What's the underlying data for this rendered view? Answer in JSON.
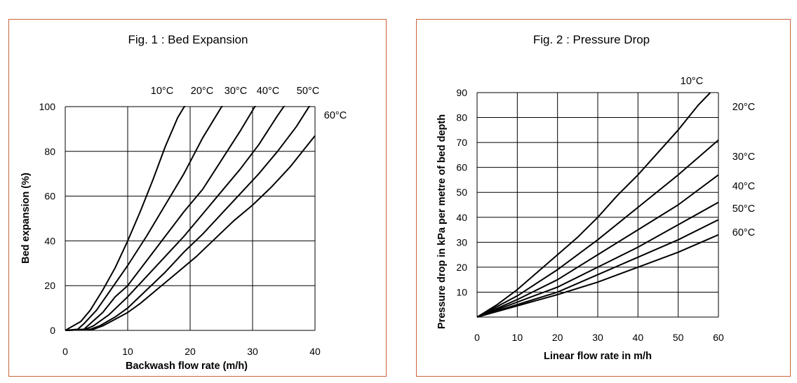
{
  "chart_data": [
    {
      "type": "line",
      "title": "Fig. 1 : Bed Expansion",
      "xlabel": "Backwash flow rate (m/h)",
      "ylabel": "Bed expansion (%)",
      "xlim": [
        0,
        40
      ],
      "ylim": [
        0,
        100
      ],
      "xticks": [
        "0",
        "10",
        "20",
        "30",
        "40"
      ],
      "yticks": [
        "0",
        "20",
        "40",
        "60",
        "80",
        "100"
      ],
      "grid": true,
      "series": [
        {
          "name": "10°C",
          "points": [
            [
              0,
              0
            ],
            [
              2.5,
              4
            ],
            [
              4,
              9
            ],
            [
              6,
              18
            ],
            [
              8,
              28
            ],
            [
              10,
              40
            ],
            [
              12,
              53
            ],
            [
              14,
              67
            ],
            [
              16,
              82
            ],
            [
              18,
              95
            ],
            [
              19.5,
              102
            ]
          ]
        },
        {
          "name": "20°C",
          "points": [
            [
              0,
              0
            ],
            [
              2,
              0.5
            ],
            [
              3,
              3
            ],
            [
              5,
              9
            ],
            [
              7,
              17
            ],
            [
              10,
              29
            ],
            [
              13,
              42
            ],
            [
              16,
              56
            ],
            [
              19,
              70
            ],
            [
              22,
              86
            ],
            [
              25.5,
              102
            ]
          ]
        },
        {
          "name": "30°C",
          "points": [
            [
              0,
              0
            ],
            [
              3,
              0.5
            ],
            [
              4,
              3
            ],
            [
              6,
              8
            ],
            [
              8,
              15
            ],
            [
              10,
              20
            ],
            [
              13,
              31
            ],
            [
              16,
              42
            ],
            [
              19,
              53
            ],
            [
              22,
              63
            ],
            [
              25,
              76
            ],
            [
              28,
              89
            ],
            [
              30.8,
              102
            ]
          ]
        },
        {
          "name": "40°C",
          "points": [
            [
              0,
              0
            ],
            [
              3,
              0.3
            ],
            [
              4.5,
              2
            ],
            [
              7,
              7
            ],
            [
              10,
              15
            ],
            [
              13,
              24
            ],
            [
              16,
              33
            ],
            [
              19,
              42
            ],
            [
              22,
              52
            ],
            [
              25,
              62
            ],
            [
              28,
              72
            ],
            [
              31,
              83
            ],
            [
              34,
              96
            ],
            [
              35.5,
              102
            ]
          ]
        },
        {
          "name": "50°C",
          "points": [
            [
              0,
              0
            ],
            [
              4,
              0.5
            ],
            [
              5.5,
              2
            ],
            [
              8,
              6
            ],
            [
              10,
              10
            ],
            [
              13,
              18
            ],
            [
              16,
              26
            ],
            [
              19,
              35
            ],
            [
              22,
              43
            ],
            [
              25,
              52
            ],
            [
              28,
              61
            ],
            [
              31,
              70
            ],
            [
              34,
              80
            ],
            [
              37,
              91
            ],
            [
              39.5,
              102
            ]
          ]
        },
        {
          "name": "60°C",
          "points": [
            [
              0,
              0
            ],
            [
              4.5,
              0.5
            ],
            [
              6,
              2
            ],
            [
              8,
              5
            ],
            [
              10,
              8
            ],
            [
              12,
              12
            ],
            [
              15,
              19
            ],
            [
              18,
              26
            ],
            [
              21,
              33
            ],
            [
              24,
              41
            ],
            [
              27,
              49
            ],
            [
              30,
              56
            ],
            [
              33,
              64
            ],
            [
              36,
              73
            ],
            [
              38,
              80
            ],
            [
              40,
              87
            ]
          ]
        }
      ]
    },
    {
      "type": "line",
      "title": "Fig. 2 : Pressure Drop",
      "xlabel": "Linear flow rate in m/h",
      "ylabel": "Pressure drop in kPa per metre of bed depth",
      "xlim": [
        0,
        60
      ],
      "ylim": [
        0,
        90
      ],
      "xticks": [
        "0",
        "10",
        "20",
        "30",
        "40",
        "50",
        "60"
      ],
      "yticks": [
        "10",
        "20",
        "30",
        "40",
        "50",
        "60",
        "70",
        "80",
        "90"
      ],
      "grid": true,
      "series": [
        {
          "name": "10°C",
          "points": [
            [
              0,
              0
            ],
            [
              5,
              5
            ],
            [
              10,
              11
            ],
            [
              15,
              18
            ],
            [
              20,
              25
            ],
            [
              25,
              32
            ],
            [
              30,
              40
            ],
            [
              35,
              49
            ],
            [
              40,
              57
            ],
            [
              45,
              66
            ],
            [
              50,
              75
            ],
            [
              55,
              85
            ],
            [
              58,
              90
            ]
          ]
        },
        {
          "name": "20°C",
          "points": [
            [
              0,
              0
            ],
            [
              10,
              8.5
            ],
            [
              20,
              19
            ],
            [
              30,
              31
            ],
            [
              40,
              44
            ],
            [
              50,
              57
            ],
            [
              60,
              71
            ]
          ]
        },
        {
          "name": "30°C",
          "points": [
            [
              0,
              0
            ],
            [
              10,
              7
            ],
            [
              20,
              15
            ],
            [
              30,
              25
            ],
            [
              40,
              35
            ],
            [
              50,
              45
            ],
            [
              60,
              57
            ]
          ]
        },
        {
          "name": "40°C",
          "points": [
            [
              0,
              0
            ],
            [
              10,
              6
            ],
            [
              20,
              12
            ],
            [
              30,
              20
            ],
            [
              40,
              28
            ],
            [
              50,
              37
            ],
            [
              60,
              46
            ]
          ]
        },
        {
          "name": "50°C",
          "points": [
            [
              0,
              0
            ],
            [
              10,
              5
            ],
            [
              20,
              10
            ],
            [
              30,
              17
            ],
            [
              40,
              24
            ],
            [
              50,
              31
            ],
            [
              60,
              39
            ]
          ]
        },
        {
          "name": "60°C",
          "points": [
            [
              0,
              0
            ],
            [
              10,
              4.5
            ],
            [
              20,
              9
            ],
            [
              30,
              14
            ],
            [
              40,
              20
            ],
            [
              50,
              26
            ],
            [
              60,
              33
            ]
          ]
        }
      ]
    }
  ]
}
